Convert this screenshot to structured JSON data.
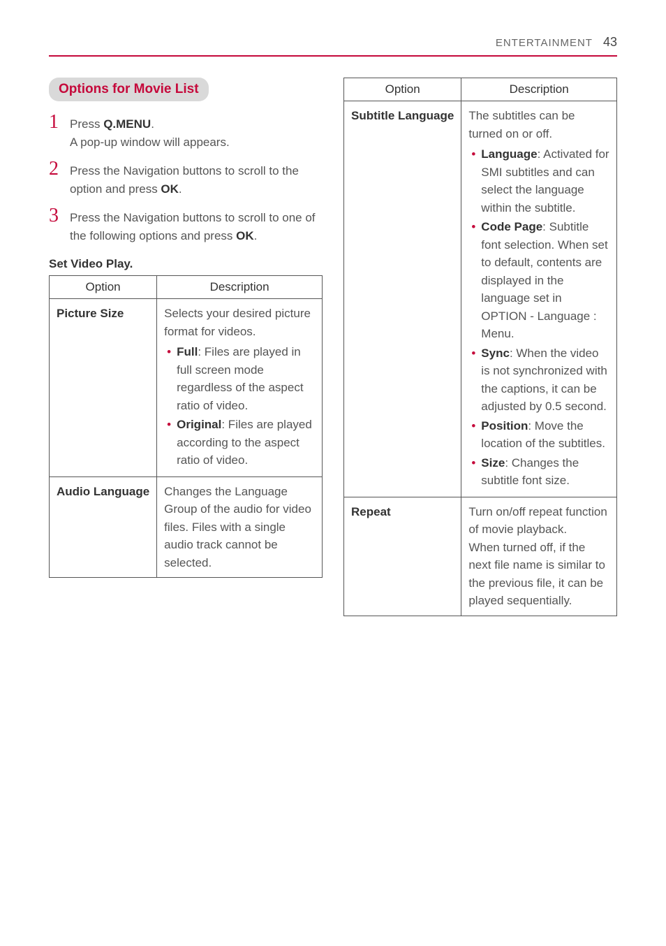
{
  "header": {
    "section": "ENTERTAINMENT",
    "page": "43"
  },
  "left": {
    "section_title": "Options for Movie List",
    "steps": [
      {
        "num": "1",
        "text_pre": "Press ",
        "text_bold": "Q.MENU",
        "text_post": ".",
        "line2": "A pop-up window will appears."
      },
      {
        "num": "2",
        "text_pre": "Press the Navigation buttons to scroll to the option and press ",
        "text_bold": "OK",
        "text_post": "."
      },
      {
        "num": "3",
        "text_pre": "Press the Navigation buttons to scroll to one of the following options and press ",
        "text_bold": "OK",
        "text_post": "."
      }
    ],
    "subheading": "Set Video Play.",
    "table": {
      "headers": [
        "Option",
        "Description"
      ],
      "rows": [
        {
          "option": "Picture Size",
          "intro": "Selects your desired picture format for videos.",
          "bullets": [
            {
              "bold": "Full",
              "rest": ": Files are played in full screen mode regardless of the aspect ratio of video."
            },
            {
              "bold": "Original",
              "rest": ": Files are played according to the aspect ratio of video."
            }
          ]
        },
        {
          "option": "Audio Language",
          "intro": "Changes the Language Group of the audio for video files. Files with a single audio track cannot be selected."
        }
      ]
    }
  },
  "right": {
    "table": {
      "headers": [
        "Option",
        "Description"
      ],
      "rows": [
        {
          "option": "Subtitle Language",
          "intro": "The subtitles can be turned on or off.",
          "bullets": [
            {
              "bold": "Language",
              "rest": ": Activated for SMI subtitles and can select the language within the subtitle."
            },
            {
              "bold": "Code Page",
              "rest": ": Subtitle font selection. When set to default, contents are displayed in the language set in OPTION - Language : Menu."
            },
            {
              "bold": "Sync",
              "rest": ": When the video is not synchronized with the captions, it can be adjusted by 0.5 second."
            },
            {
              "bold": "Position",
              "rest": ": Move the location of the subtitles."
            },
            {
              "bold": "Size",
              "rest": ": Changes the subtitle font size."
            }
          ]
        },
        {
          "option": "Repeat",
          "intro": "Turn on/off repeat function of movie playback.",
          "extra": "When turned off, if the next file name is similar to the previous file, it can be played sequentially."
        }
      ]
    }
  },
  "colors": {
    "accent": "#c5093b",
    "text": "#555555",
    "text_dark": "#333333",
    "chip_bg": "#d9d9d9",
    "border": "#555555"
  }
}
